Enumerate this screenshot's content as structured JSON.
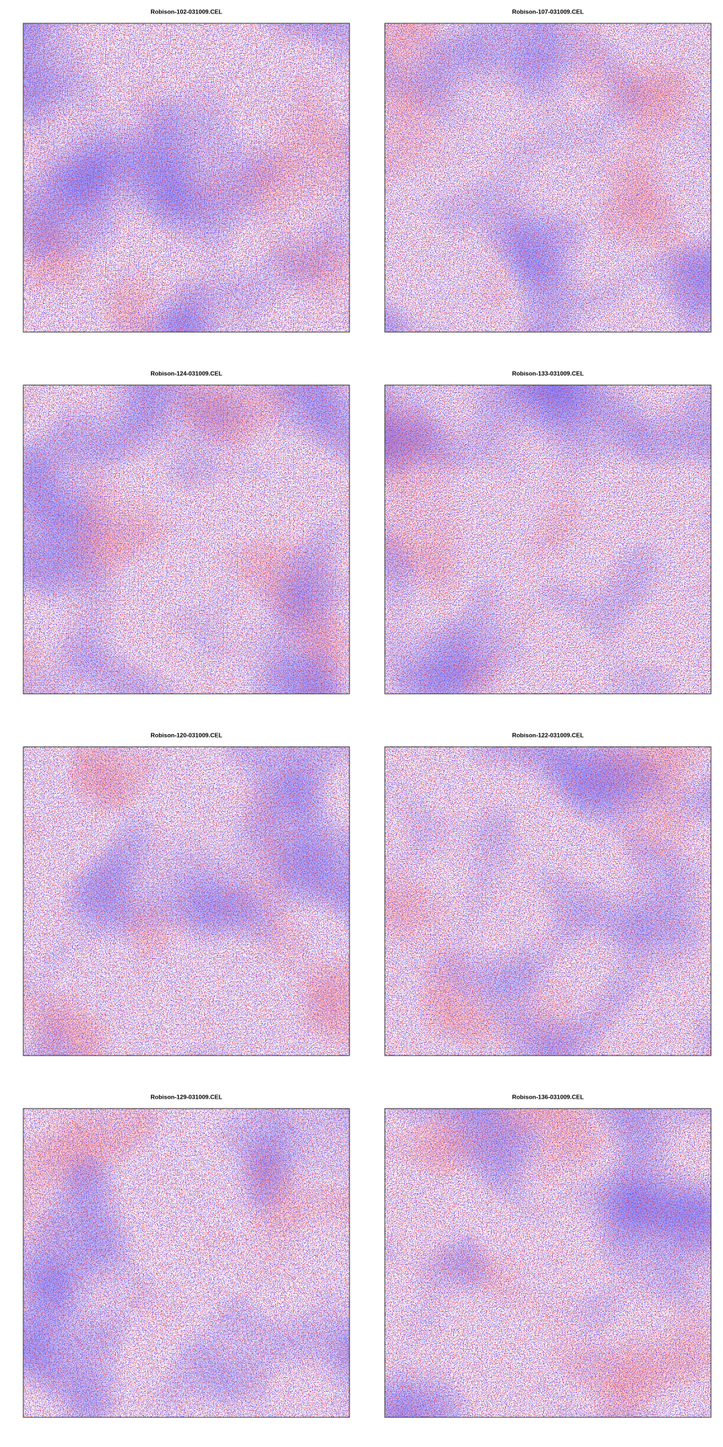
{
  "panels": [
    {
      "title": "Robison-102-031009.CEL"
    },
    {
      "title": "Robison-107-031009.CEL"
    },
    {
      "title": "Robison-124-031009.CEL"
    },
    {
      "title": "Robison-133-031009.CEL"
    },
    {
      "title": "Robison-120-031009.CEL"
    },
    {
      "title": "Robison-122-031009.CEL"
    },
    {
      "title": "Robison-129-031009.CEL"
    },
    {
      "title": "Robison-136-031009.CEL"
    }
  ]
}
